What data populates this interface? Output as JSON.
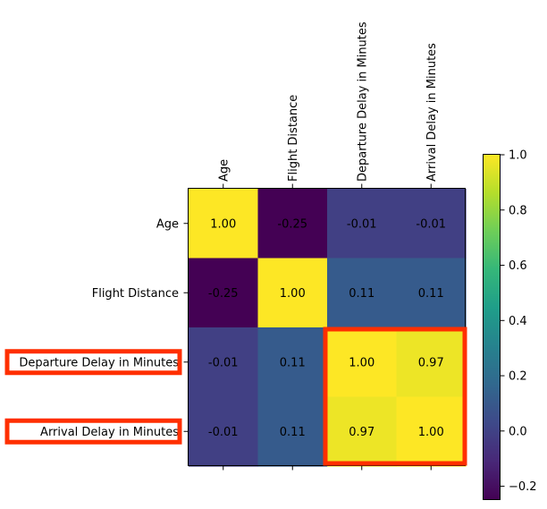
{
  "chart_data": {
    "type": "heatmap",
    "x_labels": [
      "Age",
      "Flight Distance",
      "Departure Delay in Minutes",
      "Arrival Delay in Minutes"
    ],
    "y_labels": [
      "Age",
      "Flight Distance",
      "Departure Delay in Minutes",
      "Arrival Delay in Minutes"
    ],
    "values": [
      [
        1.0,
        -0.25,
        -0.01,
        -0.01
      ],
      [
        -0.25,
        1.0,
        0.11,
        0.11
      ],
      [
        -0.01,
        0.11,
        1.0,
        0.97
      ],
      [
        -0.01,
        0.11,
        0.97,
        1.0
      ]
    ],
    "value_format": "0.00",
    "colormap": "viridis",
    "vmin": -0.25,
    "vmax": 1.0,
    "colorbar_ticks": [
      -0.2,
      0.0,
      0.2,
      0.4,
      0.6,
      0.8,
      1.0
    ],
    "colorbar_tick_labels": [
      "−0.2",
      "0.0",
      "0.2",
      "0.4",
      "0.6",
      "0.8",
      "1.0"
    ],
    "highlighted_cells": [
      [
        2,
        2
      ],
      [
        2,
        3
      ],
      [
        3,
        2
      ],
      [
        3,
        3
      ]
    ],
    "highlighted_row_labels": [
      2,
      3
    ],
    "highlight_color": "#ff2f00"
  }
}
